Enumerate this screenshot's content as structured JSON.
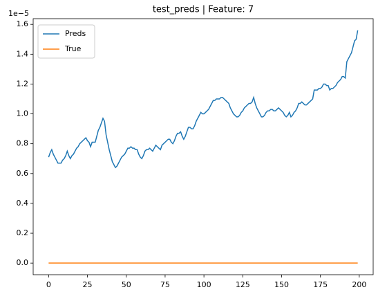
{
  "chart_data": {
    "type": "line",
    "title": "test_preds | Feature: 7",
    "y_offset_label": "1e−5",
    "x": [
      0,
      1,
      2,
      3,
      4,
      5,
      6,
      7,
      8,
      9,
      10,
      11,
      12,
      13,
      14,
      15,
      16,
      17,
      18,
      19,
      20,
      21,
      22,
      23,
      24,
      25,
      26,
      27,
      28,
      29,
      30,
      31,
      32,
      33,
      34,
      35,
      36,
      37,
      38,
      39,
      40,
      41,
      42,
      43,
      44,
      45,
      46,
      47,
      48,
      49,
      50,
      51,
      52,
      53,
      54,
      55,
      56,
      57,
      58,
      59,
      60,
      61,
      62,
      63,
      64,
      65,
      66,
      67,
      68,
      69,
      70,
      71,
      72,
      73,
      74,
      75,
      76,
      77,
      78,
      79,
      80,
      81,
      82,
      83,
      84,
      85,
      86,
      87,
      88,
      89,
      90,
      91,
      92,
      93,
      94,
      95,
      96,
      97,
      98,
      99,
      100,
      101,
      102,
      103,
      104,
      105,
      106,
      107,
      108,
      109,
      110,
      111,
      112,
      113,
      114,
      115,
      116,
      117,
      118,
      119,
      120,
      121,
      122,
      123,
      124,
      125,
      126,
      127,
      128,
      129,
      130,
      131,
      132,
      133,
      134,
      135,
      136,
      137,
      138,
      139,
      140,
      141,
      142,
      143,
      144,
      145,
      146,
      147,
      148,
      149,
      150,
      151,
      152,
      153,
      154,
      155,
      156,
      157,
      158,
      159,
      160,
      161,
      162,
      163,
      164,
      165,
      166,
      167,
      168,
      169,
      170,
      171,
      172,
      173,
      174,
      175,
      176,
      177,
      178,
      179,
      180,
      181,
      182,
      183,
      184,
      185,
      186,
      187,
      188,
      189,
      190,
      191,
      192,
      193,
      194,
      195,
      196,
      197,
      198,
      199
    ],
    "series": [
      {
        "name": "Preds",
        "color": "#1f77b4",
        "values": [
          0.71,
          0.74,
          0.76,
          0.73,
          0.71,
          0.69,
          0.67,
          0.67,
          0.67,
          0.69,
          0.7,
          0.72,
          0.75,
          0.72,
          0.7,
          0.72,
          0.73,
          0.75,
          0.77,
          0.78,
          0.8,
          0.81,
          0.82,
          0.83,
          0.84,
          0.82,
          0.81,
          0.78,
          0.81,
          0.81,
          0.81,
          0.85,
          0.89,
          0.91,
          0.94,
          0.97,
          0.95,
          0.86,
          0.81,
          0.76,
          0.72,
          0.68,
          0.66,
          0.64,
          0.65,
          0.67,
          0.69,
          0.71,
          0.72,
          0.73,
          0.75,
          0.77,
          0.77,
          0.78,
          0.77,
          0.77,
          0.76,
          0.76,
          0.73,
          0.71,
          0.7,
          0.72,
          0.75,
          0.76,
          0.76,
          0.77,
          0.76,
          0.75,
          0.77,
          0.79,
          0.78,
          0.77,
          0.76,
          0.79,
          0.8,
          0.81,
          0.82,
          0.83,
          0.83,
          0.81,
          0.8,
          0.82,
          0.85,
          0.87,
          0.87,
          0.88,
          0.85,
          0.83,
          0.85,
          0.88,
          0.91,
          0.91,
          0.9,
          0.9,
          0.92,
          0.95,
          0.97,
          0.99,
          1.01,
          1.0,
          1.0,
          1.01,
          1.02,
          1.03,
          1.05,
          1.07,
          1.09,
          1.09,
          1.1,
          1.1,
          1.1,
          1.11,
          1.11,
          1.1,
          1.09,
          1.08,
          1.07,
          1.04,
          1.02,
          1.0,
          0.99,
          0.98,
          0.98,
          0.99,
          1.01,
          1.02,
          1.04,
          1.05,
          1.06,
          1.07,
          1.07,
          1.08,
          1.11,
          1.07,
          1.04,
          1.02,
          1.0,
          0.98,
          0.98,
          0.99,
          1.01,
          1.02,
          1.02,
          1.03,
          1.03,
          1.02,
          1.02,
          1.03,
          1.04,
          1.03,
          1.02,
          1.01,
          0.99,
          0.98,
          0.99,
          1.01,
          0.98,
          0.99,
          1.01,
          1.02,
          1.04,
          1.07,
          1.07,
          1.08,
          1.07,
          1.06,
          1.06,
          1.07,
          1.08,
          1.09,
          1.1,
          1.16,
          1.16,
          1.16,
          1.17,
          1.17,
          1.18,
          1.2,
          1.2,
          1.19,
          1.19,
          1.16,
          1.17,
          1.17,
          1.18,
          1.19,
          1.21,
          1.22,
          1.23,
          1.25,
          1.25,
          1.24,
          1.35,
          1.37,
          1.39,
          1.41,
          1.45,
          1.49,
          1.5,
          1.56
        ]
      },
      {
        "name": "True",
        "color": "#ff7f0e",
        "values": [
          0,
          0,
          0,
          0,
          0,
          0,
          0,
          0,
          0,
          0,
          0,
          0,
          0,
          0,
          0,
          0,
          0,
          0,
          0,
          0,
          0,
          0,
          0,
          0,
          0,
          0,
          0,
          0,
          0,
          0,
          0,
          0,
          0,
          0,
          0,
          0,
          0,
          0,
          0,
          0,
          0,
          0,
          0,
          0,
          0,
          0,
          0,
          0,
          0,
          0,
          0,
          0,
          0,
          0,
          0,
          0,
          0,
          0,
          0,
          0,
          0,
          0,
          0,
          0,
          0,
          0,
          0,
          0,
          0,
          0,
          0,
          0,
          0,
          0,
          0,
          0,
          0,
          0,
          0,
          0,
          0,
          0,
          0,
          0,
          0,
          0,
          0,
          0,
          0,
          0,
          0,
          0,
          0,
          0,
          0,
          0,
          0,
          0,
          0,
          0,
          0,
          0,
          0,
          0,
          0,
          0,
          0,
          0,
          0,
          0,
          0,
          0,
          0,
          0,
          0,
          0,
          0,
          0,
          0,
          0,
          0,
          0,
          0,
          0,
          0,
          0,
          0,
          0,
          0,
          0,
          0,
          0,
          0,
          0,
          0,
          0,
          0,
          0,
          0,
          0,
          0,
          0,
          0,
          0,
          0,
          0,
          0,
          0,
          0,
          0,
          0,
          0,
          0,
          0,
          0,
          0,
          0,
          0,
          0,
          0,
          0,
          0,
          0,
          0,
          0,
          0,
          0,
          0,
          0,
          0,
          0,
          0,
          0,
          0,
          0,
          0,
          0,
          0,
          0,
          0,
          0,
          0,
          0,
          0,
          0,
          0,
          0,
          0,
          0,
          0,
          0,
          0,
          0,
          0,
          0,
          0,
          0,
          0,
          0,
          0
        ]
      }
    ],
    "xlim": [
      -9.95,
      208.95
    ],
    "xticks": [
      0,
      25,
      50,
      75,
      100,
      125,
      150,
      175,
      200
    ],
    "ylim": [
      -0.078,
      1.638
    ],
    "yticks": [
      {
        "value": 0,
        "label": "0.0"
      },
      0.2,
      0.4,
      0.6,
      0.8,
      {
        "value": 1,
        "label": "1.0"
      },
      1.2,
      1.4,
      1.6
    ],
    "legend": "upper left",
    "grid": false
  }
}
